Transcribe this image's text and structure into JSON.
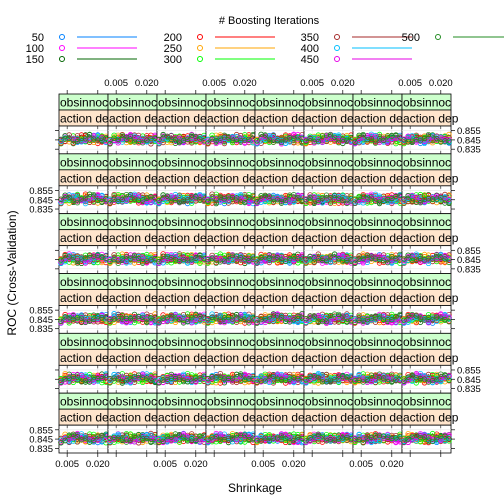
{
  "chart_data": {
    "type": "line",
    "legend": {
      "title": "# Boosting Iterations",
      "placement": "top",
      "entries": [
        {
          "label": "50",
          "color": "#0080ff"
        },
        {
          "label": "100",
          "color": "#ff00ff"
        },
        {
          "label": "150",
          "color": "#006400"
        },
        {
          "label": "200",
          "color": "#ff0000"
        },
        {
          "label": "250",
          "color": "#ffa500"
        },
        {
          "label": "300",
          "color": "#00ff00"
        },
        {
          "label": "350",
          "color": "#a52a2a"
        },
        {
          "label": "400",
          "color": "#00bfff"
        },
        {
          "label": "450",
          "color": "#e600e6"
        },
        {
          "label": "500",
          "color": "#228b22"
        }
      ]
    },
    "xlabel": "Shrinkage",
    "ylabel": "ROC (Cross-Validation)",
    "x_ticks": [
      "0.005",
      "0.020"
    ],
    "x_tick_values": [
      0.005,
      0.02
    ],
    "xlim": [
      0.001,
      0.025
    ],
    "y_ticks": [
      "0.855",
      "0.845",
      "0.835"
    ],
    "y_tick_values": [
      0.855,
      0.845,
      0.835
    ],
    "ylim": [
      0.83,
      0.86
    ],
    "grid": true,
    "panels": {
      "columns": 8,
      "rows": 6
    },
    "strip_labels": [
      "obsinnoc",
      "action dep"
    ],
    "strip_colors": [
      "#ccffcc",
      "#ffe5cc"
    ],
    "series_shape": {
      "base": 0.846,
      "amplitude": 0.004
    }
  }
}
